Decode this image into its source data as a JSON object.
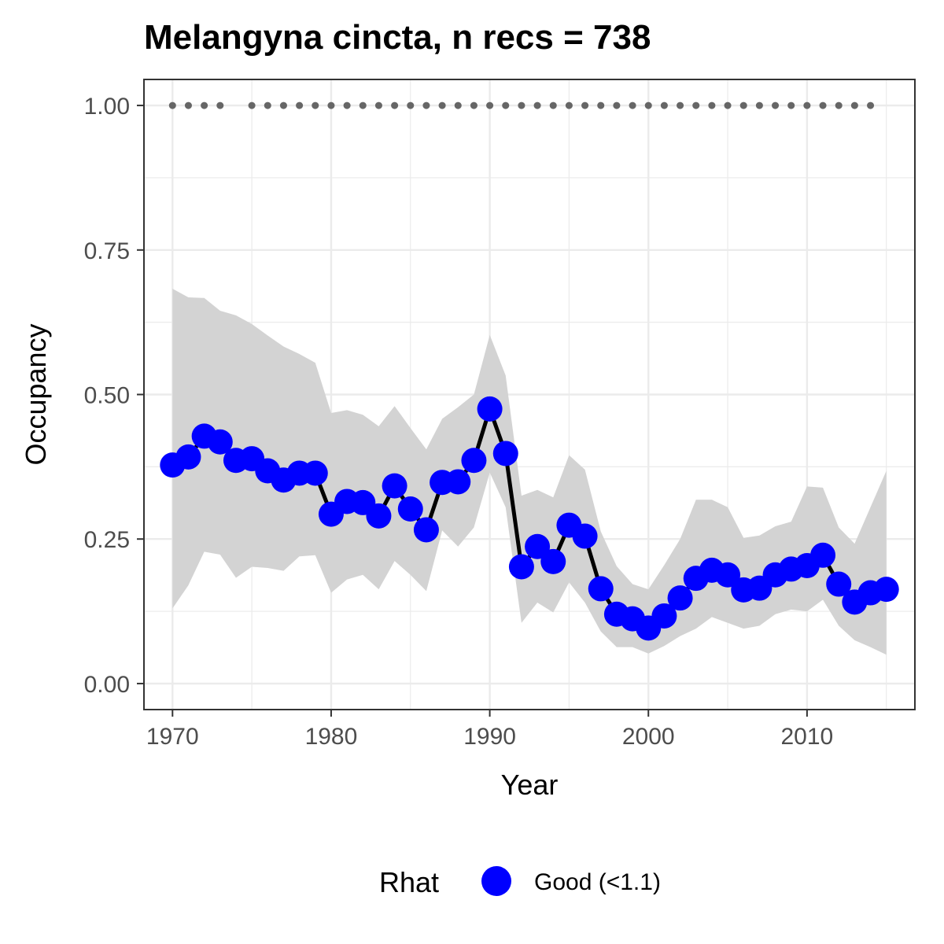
{
  "chart_data": {
    "type": "line",
    "title": "Melangyna cincta, n recs = 738",
    "xlabel": "Year",
    "ylabel": "Occupancy",
    "xlim": [
      1968.2,
      2016.8
    ],
    "ylim": [
      -0.045,
      1.045
    ],
    "x_ticks": [
      1970,
      1980,
      1990,
      2000,
      2010
    ],
    "x_tick_labels": [
      "1970",
      "1980",
      "1990",
      "2000",
      "2010"
    ],
    "y_ticks": [
      0,
      0.25,
      0.5,
      0.75,
      1.0
    ],
    "y_tick_labels": [
      "0.00",
      "0.25",
      "0.50",
      "0.75",
      "1.00"
    ],
    "grid": true,
    "legend": {
      "title": "Rhat",
      "placement": "bottom",
      "entries": [
        {
          "label": "Good (<1.1)",
          "color": "#0000ff"
        }
      ]
    },
    "colors": {
      "points": "#0000ff",
      "line": "#000000",
      "ribbon": "#d3d3d3",
      "data_dots": "#666666",
      "panel_border": "#333333",
      "grid": "#ebebeb"
    },
    "years_with_data": [
      1970,
      1971,
      1972,
      1973,
      1975,
      1976,
      1977,
      1978,
      1979,
      1980,
      1981,
      1982,
      1983,
      1984,
      1985,
      1986,
      1987,
      1988,
      1989,
      1990,
      1991,
      1992,
      1993,
      1994,
      1995,
      1996,
      1997,
      1998,
      1999,
      2000,
      2001,
      2002,
      2003,
      2004,
      2005,
      2006,
      2007,
      2008,
      2009,
      2010,
      2011,
      2012,
      2013,
      2014
    ],
    "series": [
      {
        "x": [
          1970,
          1971,
          1972,
          1973,
          1974,
          1975,
          1976,
          1977,
          1978,
          1979,
          1980,
          1981,
          1982,
          1983,
          1984,
          1985,
          1986,
          1987,
          1988,
          1989,
          1990,
          1991,
          1992,
          1993,
          1994,
          1995,
          1996,
          1997,
          1998,
          1999,
          2000,
          2001,
          2002,
          2003,
          2004,
          2005,
          2006,
          2007,
          2008,
          2009,
          2010,
          2011,
          2012,
          2013,
          2014,
          2015
        ],
        "values": [
          0.378,
          0.392,
          0.428,
          0.418,
          0.386,
          0.389,
          0.368,
          0.352,
          0.364,
          0.364,
          0.293,
          0.315,
          0.313,
          0.29,
          0.342,
          0.302,
          0.266,
          0.348,
          0.349,
          0.386,
          0.475,
          0.398,
          0.202,
          0.237,
          0.211,
          0.274,
          0.255,
          0.164,
          0.12,
          0.112,
          0.096,
          0.117,
          0.148,
          0.182,
          0.196,
          0.188,
          0.162,
          0.165,
          0.188,
          0.198,
          0.204,
          0.222,
          0.172,
          0.141,
          0.157,
          0.163
        ],
        "lower": [
          0.13,
          0.17,
          0.228,
          0.223,
          0.183,
          0.202,
          0.2,
          0.195,
          0.22,
          0.222,
          0.157,
          0.18,
          0.188,
          0.163,
          0.212,
          0.188,
          0.16,
          0.265,
          0.237,
          0.27,
          0.365,
          0.305,
          0.105,
          0.14,
          0.123,
          0.175,
          0.14,
          0.09,
          0.063,
          0.063,
          0.052,
          0.065,
          0.082,
          0.095,
          0.115,
          0.105,
          0.095,
          0.1,
          0.12,
          0.128,
          0.125,
          0.145,
          0.1,
          0.075,
          0.063,
          0.05
        ],
        "upper": [
          0.683,
          0.668,
          0.667,
          0.645,
          0.637,
          0.622,
          0.602,
          0.583,
          0.57,
          0.555,
          0.468,
          0.473,
          0.465,
          0.445,
          0.48,
          0.442,
          0.405,
          0.458,
          0.478,
          0.5,
          0.603,
          0.533,
          0.325,
          0.335,
          0.322,
          0.395,
          0.37,
          0.263,
          0.203,
          0.172,
          0.163,
          0.205,
          0.25,
          0.318,
          0.318,
          0.305,
          0.252,
          0.256,
          0.272,
          0.28,
          0.341,
          0.339,
          0.27,
          0.242,
          0.305,
          0.368
        ]
      }
    ]
  }
}
